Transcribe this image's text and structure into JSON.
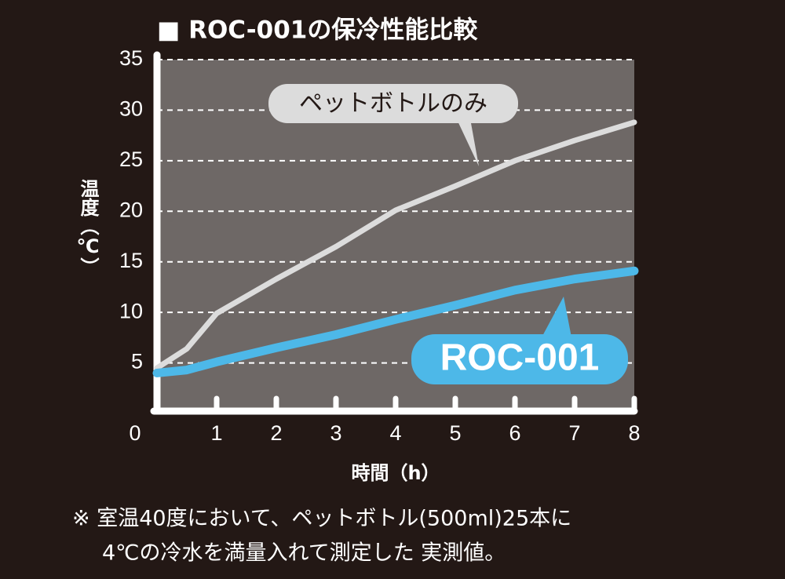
{
  "chart_data": {
    "type": "line",
    "title": "■ ROC-001の保冷性能比較",
    "x_label": "時間（h）",
    "y_label": "温度（℃）",
    "x": [
      0,
      0.5,
      1,
      2,
      3,
      4,
      5,
      6,
      7,
      8
    ],
    "series": [
      {
        "name": "ペットボトルのみ",
        "color": "#dcdcdc",
        "values": [
          4.5,
          6.4,
          9.9,
          13.3,
          16.5,
          20.1,
          22.5,
          25,
          27,
          28.8
        ]
      },
      {
        "name": "ROC-001",
        "color": "#4db8e8",
        "values": [
          4.0,
          4.3,
          5.1,
          6.5,
          7.8,
          9.3,
          10.7,
          12.2,
          13.3,
          14.1
        ]
      }
    ],
    "xlim": [
      0,
      8
    ],
    "ylim": [
      0,
      35
    ],
    "xticks": [
      0,
      1,
      2,
      3,
      4,
      5,
      6,
      7,
      8
    ],
    "yticks": [
      5,
      10,
      15,
      20,
      25,
      30,
      35
    ],
    "grid": true,
    "notes": [
      "※ 室温40度において、ペットボトル(500ml)25本に",
      "4℃の冷水を満量入れて測定した 実測値。"
    ]
  }
}
